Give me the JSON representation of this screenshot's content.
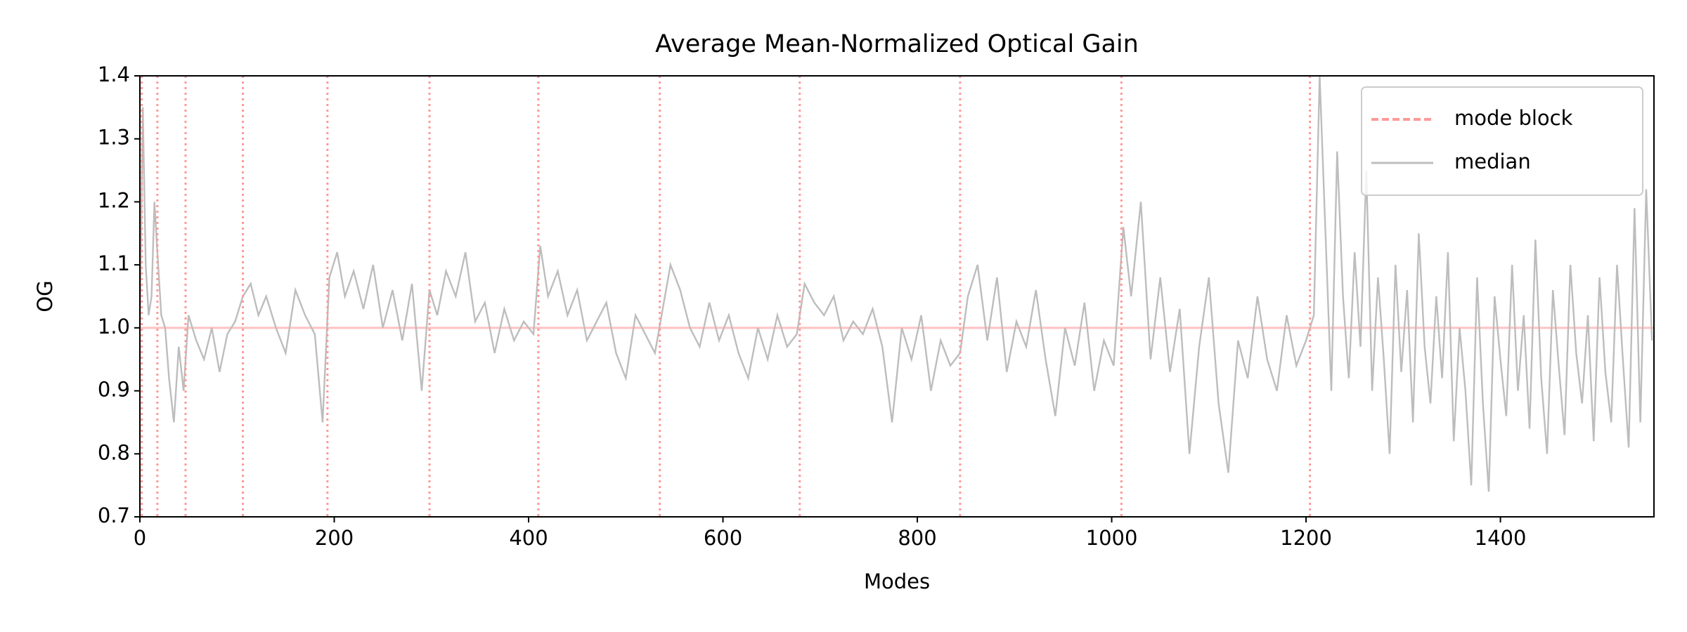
{
  "chart_data": {
    "type": "line",
    "title": "Average Mean-Normalized Optical Gain",
    "x_label": "Modes",
    "y_label": "OG",
    "xlim": [
      0,
      1558
    ],
    "ylim": [
      0.7,
      1.4
    ],
    "xticks": [
      0,
      200,
      400,
      600,
      800,
      1000,
      1200,
      1400
    ],
    "yticks": [
      0.7,
      0.8,
      0.9,
      {
        "value": 1,
        "label": "1.0"
      },
      1.1,
      1.2,
      1.3,
      1.4
    ],
    "grid": false,
    "legend": "upper right",
    "vlines": {
      "name": "mode block",
      "color": "#ff9999",
      "x": [
        2,
        18,
        47,
        106,
        193,
        298,
        410,
        535,
        679,
        844,
        1010,
        1204
      ]
    },
    "hline": {
      "y": 1,
      "color": "#ff9999"
    },
    "series": [
      {
        "name": "median",
        "color": "#bdbdbd",
        "x": [
          0,
          3,
          6,
          9,
          12,
          15,
          18,
          22,
          26,
          30,
          35,
          40,
          45,
          50,
          58,
          66,
          74,
          82,
          90,
          98,
          106,
          114,
          122,
          130,
          140,
          150,
          160,
          170,
          180,
          188,
          195,
          203,
          211,
          220,
          230,
          240,
          250,
          260,
          270,
          280,
          290,
          298,
          306,
          315,
          325,
          335,
          345,
          355,
          365,
          375,
          385,
          395,
          405,
          412,
          420,
          430,
          440,
          450,
          460,
          470,
          480,
          490,
          500,
          510,
          520,
          530,
          538,
          546,
          556,
          566,
          576,
          586,
          596,
          606,
          616,
          626,
          636,
          646,
          656,
          666,
          676,
          684,
          694,
          704,
          714,
          724,
          734,
          744,
          754,
          764,
          774,
          784,
          794,
          804,
          814,
          824,
          834,
          844,
          852,
          862,
          872,
          882,
          892,
          902,
          912,
          922,
          932,
          942,
          952,
          962,
          972,
          982,
          992,
          1002,
          1012,
          1020,
          1030,
          1040,
          1050,
          1060,
          1070,
          1080,
          1090,
          1100,
          1110,
          1120,
          1130,
          1140,
          1150,
          1160,
          1170,
          1180,
          1190,
          1200,
          1208,
          1214,
          1220,
          1226,
          1232,
          1238,
          1244,
          1250,
          1256,
          1262,
          1268,
          1274,
          1280,
          1286,
          1292,
          1298,
          1304,
          1310,
          1316,
          1322,
          1328,
          1334,
          1340,
          1346,
          1352,
          1358,
          1364,
          1370,
          1376,
          1382,
          1388,
          1394,
          1400,
          1406,
          1412,
          1418,
          1424,
          1430,
          1436,
          1442,
          1448,
          1454,
          1460,
          1466,
          1472,
          1478,
          1484,
          1490,
          1496,
          1502,
          1508,
          1514,
          1520,
          1526,
          1532,
          1538,
          1544,
          1550,
          1556
        ],
        "values": [
          1.0,
          1.35,
          1.1,
          1.02,
          1.05,
          1.2,
          1.12,
          1.02,
          1.0,
          0.92,
          0.85,
          0.97,
          0.9,
          1.02,
          0.98,
          0.95,
          1.0,
          0.93,
          0.99,
          1.01,
          1.05,
          1.07,
          1.02,
          1.05,
          1.0,
          0.96,
          1.06,
          1.02,
          0.99,
          0.85,
          1.08,
          1.12,
          1.05,
          1.09,
          1.03,
          1.1,
          1.0,
          1.06,
          0.98,
          1.07,
          0.9,
          1.06,
          1.02,
          1.09,
          1.05,
          1.12,
          1.01,
          1.04,
          0.96,
          1.03,
          0.98,
          1.01,
          0.99,
          1.13,
          1.05,
          1.09,
          1.02,
          1.06,
          0.98,
          1.01,
          1.04,
          0.96,
          0.92,
          1.02,
          0.99,
          0.96,
          1.03,
          1.1,
          1.06,
          1.0,
          0.97,
          1.04,
          0.98,
          1.02,
          0.96,
          0.92,
          1.0,
          0.95,
          1.02,
          0.97,
          0.99,
          1.07,
          1.04,
          1.02,
          1.05,
          0.98,
          1.01,
          0.99,
          1.03,
          0.97,
          0.85,
          1.0,
          0.95,
          1.02,
          0.9,
          0.98,
          0.94,
          0.96,
          1.05,
          1.1,
          0.98,
          1.08,
          0.93,
          1.01,
          0.97,
          1.06,
          0.95,
          0.86,
          1.0,
          0.94,
          1.04,
          0.9,
          0.98,
          0.94,
          1.16,
          1.05,
          1.2,
          0.95,
          1.08,
          0.93,
          1.03,
          0.8,
          0.97,
          1.08,
          0.88,
          0.77,
          0.98,
          0.92,
          1.05,
          0.95,
          0.9,
          1.02,
          0.94,
          0.98,
          1.02,
          1.4,
          1.15,
          0.9,
          1.28,
          1.05,
          0.92,
          1.12,
          0.97,
          1.25,
          0.9,
          1.08,
          0.95,
          0.8,
          1.1,
          0.93,
          1.06,
          0.85,
          1.15,
          0.97,
          0.88,
          1.05,
          0.92,
          1.12,
          0.82,
          1.0,
          0.9,
          0.75,
          1.08,
          0.88,
          0.74,
          1.05,
          0.95,
          0.86,
          1.1,
          0.9,
          1.02,
          0.84,
          1.14,
          0.92,
          0.8,
          1.06,
          0.94,
          0.83,
          1.1,
          0.96,
          0.88,
          1.02,
          0.82,
          1.08,
          0.93,
          0.85,
          1.1,
          0.95,
          0.81,
          1.19,
          0.85,
          1.22,
          0.98
        ]
      }
    ]
  }
}
